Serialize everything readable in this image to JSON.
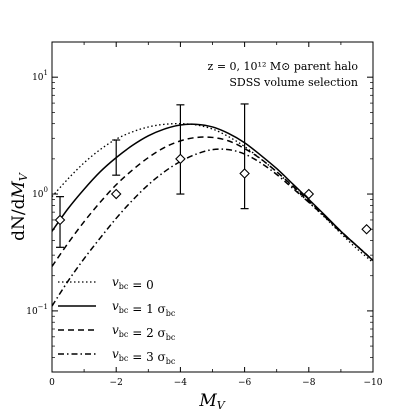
{
  "chart_data": {
    "type": "line",
    "title": "",
    "xlabel": "M_V",
    "ylabel": "dN/dM_V",
    "xlim": [
      0,
      -10
    ],
    "ylim": [
      0.03,
      20
    ],
    "yscale": "log",
    "x_ticks": [
      0,
      -2,
      -4,
      -6,
      -8,
      -10
    ],
    "x_tick_labels": [
      "0",
      "−2",
      "−4",
      "−6",
      "−8",
      "−10"
    ],
    "y_ticks": [
      0.1,
      1,
      10
    ],
    "annotations": {
      "line1": "z = 0, 10¹² M⊙ parent halo",
      "line2": "SDSS volume selection"
    },
    "legend_position": "bottom-left",
    "series": [
      {
        "name": "v_bc = 0",
        "style": "dotted",
        "x": [
          0,
          -0.5,
          -1,
          -1.5,
          -2,
          -2.5,
          -3,
          -3.5,
          -4,
          -4.5,
          -5,
          -5.5,
          -6,
          -6.5,
          -7,
          -7.5,
          -8,
          -8.5,
          -9,
          -9.5,
          -10
        ],
        "y": [
          0.95,
          1.35,
          1.85,
          2.4,
          2.95,
          3.4,
          3.75,
          3.95,
          4.0,
          3.9,
          3.6,
          3.1,
          2.55,
          2.0,
          1.55,
          1.15,
          0.85,
          0.63,
          0.46,
          0.34,
          0.26
        ]
      },
      {
        "name": "v_bc = 1 σ_bc",
        "style": "solid",
        "x": [
          0,
          -0.5,
          -1,
          -1.5,
          -2,
          -2.5,
          -3,
          -3.5,
          -4,
          -4.5,
          -5,
          -5.5,
          -6,
          -6.5,
          -7,
          -7.5,
          -8,
          -8.5,
          -9,
          -9.5,
          -10
        ],
        "y": [
          0.48,
          0.75,
          1.1,
          1.55,
          2.05,
          2.6,
          3.15,
          3.6,
          3.9,
          3.95,
          3.75,
          3.3,
          2.75,
          2.15,
          1.65,
          1.22,
          0.9,
          0.66,
          0.48,
          0.36,
          0.27
        ]
      },
      {
        "name": "v_bc = 2 σ_bc",
        "style": "dashed",
        "x": [
          0,
          -0.5,
          -1,
          -1.5,
          -2,
          -2.5,
          -3,
          -3.5,
          -4,
          -4.5,
          -5,
          -5.5,
          -6,
          -6.5,
          -7,
          -7.5,
          -8,
          -8.5,
          -9,
          -9.5,
          -10
        ],
        "y": [
          0.24,
          0.38,
          0.58,
          0.85,
          1.2,
          1.6,
          2.05,
          2.5,
          2.85,
          3.05,
          3.05,
          2.85,
          2.45,
          2.0,
          1.55,
          1.17,
          0.87,
          0.65,
          0.48,
          0.36,
          0.27
        ]
      },
      {
        "name": "v_bc = 3 σ_bc",
        "style": "dashdot",
        "x": [
          0,
          -0.5,
          -1,
          -1.5,
          -2,
          -2.5,
          -3,
          -3.5,
          -4,
          -4.5,
          -5,
          -5.5,
          -6,
          -6.5,
          -7,
          -7.5,
          -8,
          -8.5,
          -9,
          -9.5,
          -10
        ],
        "y": [
          0.11,
          0.18,
          0.28,
          0.42,
          0.62,
          0.88,
          1.2,
          1.55,
          1.9,
          2.2,
          2.4,
          2.4,
          2.2,
          1.85,
          1.47,
          1.12,
          0.85,
          0.64,
          0.47,
          0.36,
          0.27
        ]
      }
    ],
    "data_points": {
      "marker": "diamond",
      "points": [
        {
          "x": -0.25,
          "y": 0.6,
          "ylow": 0.35,
          "yhigh": 0.95
        },
        {
          "x": -2,
          "y": 1.0
        },
        {
          "x": -4,
          "y": 2.0,
          "ylow": 1.0,
          "yhigh": 5.8
        },
        {
          "x": -6,
          "y": 1.5,
          "ylow": 0.75,
          "yhigh": 5.9
        },
        {
          "x": -8,
          "y": 1.0
        },
        {
          "x": -9.8,
          "y": 0.5
        }
      ],
      "errorbars_no_marker": [
        {
          "x": -2,
          "ylow": 1.45,
          "yhigh": 2.9
        }
      ]
    }
  }
}
